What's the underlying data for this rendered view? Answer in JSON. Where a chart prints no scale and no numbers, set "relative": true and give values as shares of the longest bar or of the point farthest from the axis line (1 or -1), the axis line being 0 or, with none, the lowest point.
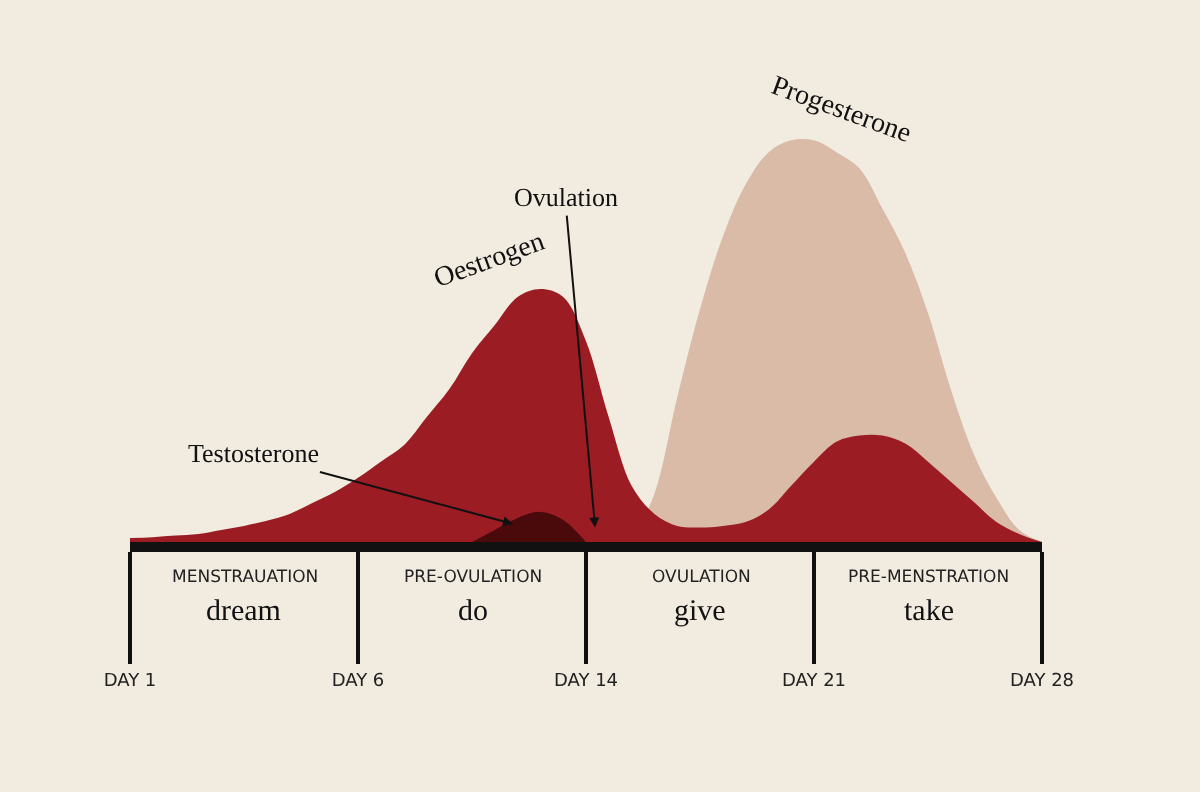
{
  "chart_data": {
    "type": "area",
    "relative": true,
    "legend": false,
    "grid": false,
    "categories": [
      "DAY 1",
      null,
      null,
      null,
      null,
      null,
      null,
      null,
      null,
      null,
      "DAY 6",
      null,
      null,
      null,
      null,
      null,
      null,
      null,
      null,
      null,
      "DAY 14",
      null,
      null,
      null,
      null,
      null,
      null,
      null,
      null,
      null,
      "DAY 21",
      null,
      null,
      null,
      null,
      null,
      null,
      null,
      null,
      null,
      "DAY 28"
    ],
    "series": [
      {
        "name": "Progesterone",
        "color": "#d9bba8",
        "values": [
          null,
          null,
          null,
          null,
          null,
          null,
          null,
          null,
          null,
          null,
          null,
          null,
          null,
          null,
          null,
          null,
          null,
          null,
          null,
          null,
          null,
          null,
          0,
          0.12,
          0.36,
          0.58,
          0.76,
          0.89,
          0.97,
          1.0,
          1.0,
          0.97,
          0.93,
          0.83,
          0.72,
          0.57,
          0.38,
          0.22,
          0.11,
          0.03,
          0
        ]
      },
      {
        "name": "Oestrogen",
        "color": "#9b1c23",
        "values": [
          0.01,
          0.012,
          0.016,
          0.02,
          0.03,
          0.04,
          0.053,
          0.07,
          0.097,
          0.125,
          0.16,
          0.2,
          0.24,
          0.31,
          0.38,
          0.47,
          0.54,
          0.61,
          0.63,
          0.61,
          0.5,
          0.31,
          0.14,
          0.07,
          0.04,
          0.036,
          0.04,
          0.05,
          0.08,
          0.14,
          0.2,
          0.25,
          0.265,
          0.265,
          0.245,
          0.2,
          0.15,
          0.1,
          0.05,
          0.02,
          0
        ]
      },
      {
        "name": "Testosterone",
        "color": "#4a0a0c",
        "values": [
          null,
          null,
          null,
          null,
          null,
          null,
          null,
          null,
          null,
          null,
          null,
          null,
          null,
          null,
          null,
          0,
          0.03,
          0.06,
          0.075,
          0.055,
          0,
          null,
          null,
          null,
          null,
          null,
          null,
          null,
          null,
          null,
          null,
          null,
          null,
          null,
          null,
          null,
          null,
          null,
          null,
          null,
          null
        ]
      }
    ],
    "annotations": [
      "Ovulation",
      "MENSTRAUATION",
      "dream",
      "PRE-OVULATION",
      "do",
      "OVULATION",
      "give",
      "PRE-MENSTRATION",
      "take"
    ]
  }
}
